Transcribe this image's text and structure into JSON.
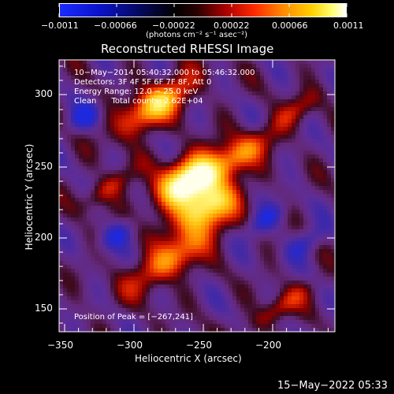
{
  "colorbar": {
    "tick_labels": [
      "−0.0011",
      "−0.00066",
      "−0.00022",
      "0.00022",
      "0.00066",
      "0.0011"
    ],
    "unit_label": "(photons cm⁻² s⁻¹ asec⁻²)"
  },
  "plot": {
    "title": "Reconstructed RHESSI Image",
    "xlabel": "Heliocentric X (arcsec)",
    "ylabel": "Heliocentric Y (arcsec)",
    "annotations": [
      "10−May−2014 05:40:32.000 to 05:46:32.000",
      "Detectors: 3F 4F 5F 6F 7F 8F, Att 0",
      "Energy Range: 12.0 − 25.0 keV",
      "Clean      Total counts: 2.62E+04"
    ],
    "peak_label": "Position of Peak = [−267,241]",
    "x_ticks": [
      "−350",
      "−300",
      "−250",
      "−200"
    ],
    "y_ticks": [
      "150",
      "200",
      "250",
      "300"
    ]
  },
  "footer": {
    "timestamp": "15−May−2022 05:33"
  }
}
